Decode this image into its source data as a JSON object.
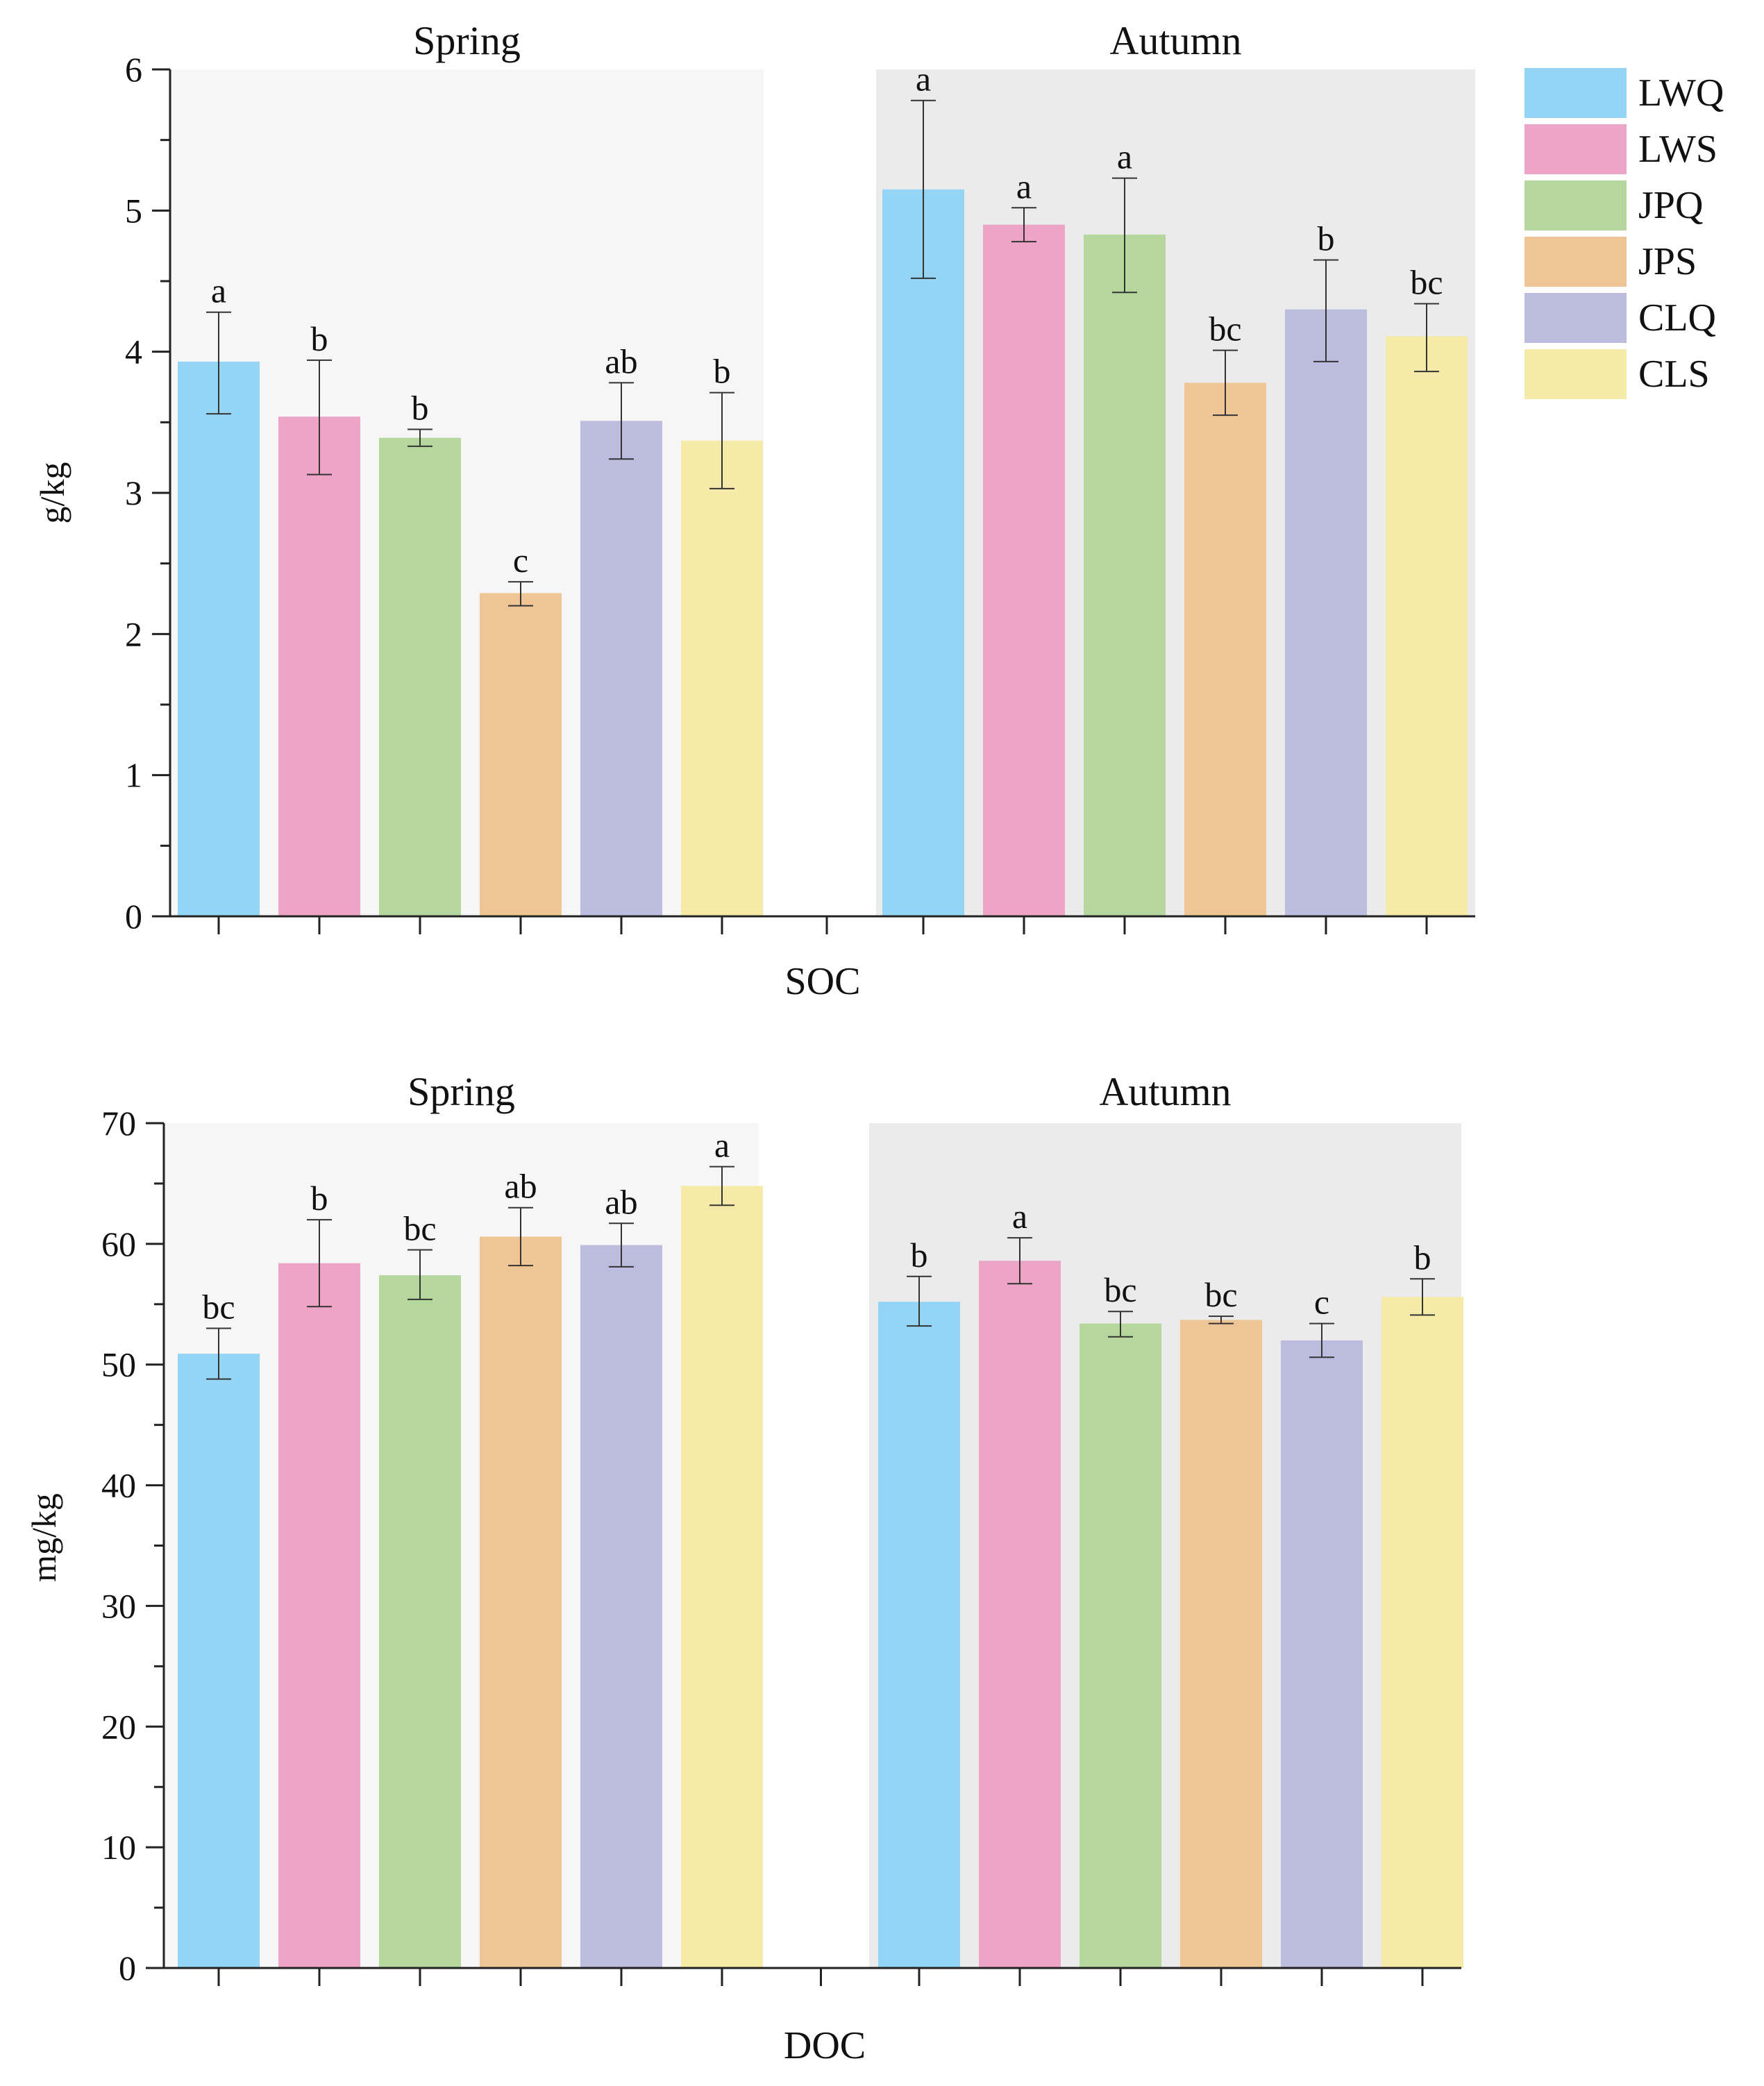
{
  "colors": {
    "LWQ": "#94d5f5",
    "LWS": "#eda4c6",
    "JPQ": "#b5d79d",
    "JPS": "#f0c595",
    "CLQ": "#bbbcde",
    "CLS": "#f5eaa8",
    "spring_bg": "#f6f6f6",
    "autumn_bg": "#ebebeb"
  },
  "legend": {
    "items": [
      {
        "label": "LWQ",
        "color_key": "LWQ"
      },
      {
        "label": "LWS",
        "color_key": "LWS"
      },
      {
        "label": "JPQ",
        "color_key": "JPQ"
      },
      {
        "label": "JPS",
        "color_key": "JPS"
      },
      {
        "label": "CLQ",
        "color_key": "CLQ"
      },
      {
        "label": "CLS",
        "color_key": "CLS"
      }
    ]
  },
  "chart_data": [
    {
      "type": "bar",
      "title": "SOC",
      "xlabel": "SOC",
      "ylabel": "g/kg",
      "ylim": [
        0,
        6
      ],
      "yticks": [
        0,
        1,
        2,
        3,
        4,
        5,
        6
      ],
      "groups": [
        {
          "name": "Spring",
          "bars": [
            {
              "category": "LWQ",
              "value": 3.93,
              "err_low": 3.56,
              "err_high": 4.28,
              "sig": "a"
            },
            {
              "category": "LWS",
              "value": 3.54,
              "err_low": 3.13,
              "err_high": 3.94,
              "sig": "b"
            },
            {
              "category": "JPQ",
              "value": 3.39,
              "err_low": 3.33,
              "err_high": 3.45,
              "sig": "b"
            },
            {
              "category": "JPS",
              "value": 2.29,
              "err_low": 2.2,
              "err_high": 2.37,
              "sig": "c"
            },
            {
              "category": "CLQ",
              "value": 3.51,
              "err_low": 3.24,
              "err_high": 3.78,
              "sig": "ab"
            },
            {
              "category": "CLS",
              "value": 3.37,
              "err_low": 3.03,
              "err_high": 3.71,
              "sig": "b"
            }
          ]
        },
        {
          "name": "Autumn",
          "bars": [
            {
              "category": "LWQ",
              "value": 5.15,
              "err_low": 4.52,
              "err_high": 5.78,
              "sig": "a"
            },
            {
              "category": "LWS",
              "value": 4.9,
              "err_low": 4.78,
              "err_high": 5.02,
              "sig": "a"
            },
            {
              "category": "JPQ",
              "value": 4.83,
              "err_low": 4.42,
              "err_high": 5.23,
              "sig": "a"
            },
            {
              "category": "JPS",
              "value": 3.78,
              "err_low": 3.55,
              "err_high": 4.01,
              "sig": "bc"
            },
            {
              "category": "CLQ",
              "value": 4.3,
              "err_low": 3.93,
              "err_high": 4.65,
              "sig": "b"
            },
            {
              "category": "CLS",
              "value": 4.11,
              "err_low": 3.86,
              "err_high": 4.34,
              "sig": "bc"
            }
          ]
        }
      ]
    },
    {
      "type": "bar",
      "title": "DOC",
      "xlabel": "DOC",
      "ylabel": "mg/kg",
      "ylim": [
        0,
        70
      ],
      "yticks": [
        0,
        10,
        20,
        30,
        40,
        50,
        60,
        70
      ],
      "groups": [
        {
          "name": "Spring",
          "bars": [
            {
              "category": "LWQ",
              "value": 50.9,
              "err_low": 48.8,
              "err_high": 53.0,
              "sig": "bc"
            },
            {
              "category": "LWS",
              "value": 58.4,
              "err_low": 54.8,
              "err_high": 62.0,
              "sig": "b"
            },
            {
              "category": "JPQ",
              "value": 57.4,
              "err_low": 55.4,
              "err_high": 59.5,
              "sig": "bc"
            },
            {
              "category": "JPS",
              "value": 60.6,
              "err_low": 58.2,
              "err_high": 63.0,
              "sig": "ab"
            },
            {
              "category": "CLQ",
              "value": 59.9,
              "err_low": 58.1,
              "err_high": 61.7,
              "sig": "ab"
            },
            {
              "category": "CLS",
              "value": 64.8,
              "err_low": 63.2,
              "err_high": 66.4,
              "sig": "a"
            }
          ]
        },
        {
          "name": "Autumn",
          "bars": [
            {
              "category": "LWQ",
              "value": 55.2,
              "err_low": 53.2,
              "err_high": 57.3,
              "sig": "b"
            },
            {
              "category": "LWS",
              "value": 58.6,
              "err_low": 56.7,
              "err_high": 60.5,
              "sig": "a"
            },
            {
              "category": "JPQ",
              "value": 53.4,
              "err_low": 52.3,
              "err_high": 54.4,
              "sig": "bc"
            },
            {
              "category": "JPS",
              "value": 53.7,
              "err_low": 53.4,
              "err_high": 54.0,
              "sig": "bc"
            },
            {
              "category": "CLQ",
              "value": 52.0,
              "err_low": 50.6,
              "err_high": 53.4,
              "sig": "c"
            },
            {
              "category": "CLS",
              "value": 55.6,
              "err_low": 54.1,
              "err_high": 57.1,
              "sig": "b"
            }
          ]
        }
      ]
    }
  ]
}
